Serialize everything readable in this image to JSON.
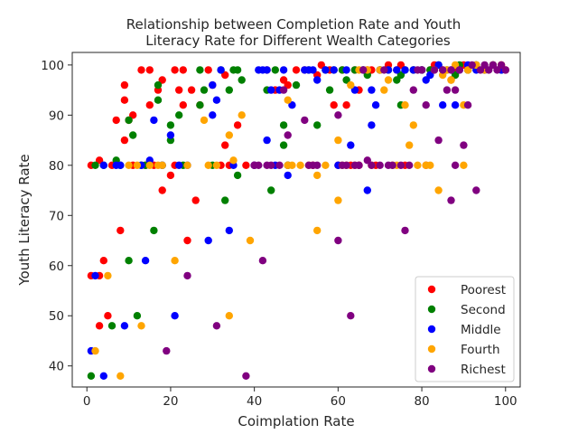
{
  "chart_data": {
    "type": "scatter",
    "title_line1": "Relationship between Completion Rate and Youth",
    "title_line2": "Literacy Rate for Different Wealth Categories",
    "xlabel": "Coimplation Rate",
    "ylabel": "Youth Literacy Rate",
    "xlim": [
      -3.5,
      103.5
    ],
    "ylim": [
      35.8,
      102.5
    ],
    "xticks": [
      0,
      20,
      40,
      60,
      80,
      100
    ],
    "yticks": [
      40,
      50,
      60,
      70,
      80,
      90,
      100
    ],
    "grid": false,
    "legend_position": "lower-right",
    "series": [
      {
        "name": "Poorest",
        "color": "#ff0000",
        "points": [
          [
            1,
            58
          ],
          [
            1,
            80
          ],
          [
            3,
            58
          ],
          [
            3,
            81
          ],
          [
            3,
            48
          ],
          [
            4,
            61
          ],
          [
            5,
            50
          ],
          [
            6,
            80
          ],
          [
            7,
            89
          ],
          [
            8,
            67
          ],
          [
            9,
            85
          ],
          [
            9,
            93
          ],
          [
            9,
            96
          ],
          [
            10,
            89
          ],
          [
            11,
            80
          ],
          [
            11,
            90
          ],
          [
            13,
            99
          ],
          [
            14,
            80
          ],
          [
            15,
            99
          ],
          [
            15,
            92
          ],
          [
            16,
            80
          ],
          [
            17,
            95
          ],
          [
            18,
            97
          ],
          [
            18,
            75
          ],
          [
            20,
            78
          ],
          [
            21,
            80
          ],
          [
            21,
            99
          ],
          [
            22,
            95
          ],
          [
            23,
            92
          ],
          [
            23,
            99
          ],
          [
            24,
            65
          ],
          [
            25,
            95
          ],
          [
            26,
            73
          ],
          [
            27,
            92
          ],
          [
            29,
            99
          ],
          [
            30,
            96
          ],
          [
            32,
            80
          ],
          [
            33,
            98
          ],
          [
            33,
            84
          ],
          [
            34,
            80
          ],
          [
            36,
            88
          ],
          [
            38,
            80
          ],
          [
            40,
            80
          ],
          [
            43,
            99
          ],
          [
            45,
            95
          ],
          [
            47,
            97
          ],
          [
            48,
            96
          ],
          [
            48,
            80
          ],
          [
            50,
            99
          ],
          [
            52,
            99
          ],
          [
            54,
            80
          ],
          [
            55,
            98
          ],
          [
            56,
            100
          ],
          [
            58,
            99
          ],
          [
            59,
            92
          ],
          [
            60,
            80
          ],
          [
            61,
            99
          ],
          [
            62,
            92
          ],
          [
            63,
            80
          ],
          [
            64,
            99
          ],
          [
            65,
            95
          ],
          [
            65,
            80
          ],
          [
            67,
            99
          ],
          [
            68,
            99
          ],
          [
            69,
            80
          ],
          [
            70,
            99
          ],
          [
            72,
            100
          ],
          [
            74,
            99
          ],
          [
            75,
            100
          ],
          [
            76,
            80
          ],
          [
            78,
            99
          ],
          [
            80,
            99
          ],
          [
            81,
            80
          ],
          [
            82,
            99
          ],
          [
            83,
            100
          ],
          [
            85,
            99
          ],
          [
            87,
            97
          ],
          [
            88,
            99
          ],
          [
            90,
            100
          ],
          [
            91,
            99
          ],
          [
            93,
            100
          ],
          [
            95,
            99
          ],
          [
            97,
            100
          ],
          [
            99,
            100
          ],
          [
            100,
            99
          ]
        ]
      },
      {
        "name": "Second",
        "color": "#008000",
        "points": [
          [
            1,
            38
          ],
          [
            2,
            80
          ],
          [
            4,
            80
          ],
          [
            6,
            48
          ],
          [
            7,
            81
          ],
          [
            8,
            80
          ],
          [
            10,
            61
          ],
          [
            10,
            89
          ],
          [
            11,
            86
          ],
          [
            12,
            50
          ],
          [
            13,
            80
          ],
          [
            14,
            80
          ],
          [
            16,
            67
          ],
          [
            17,
            96
          ],
          [
            17,
            93
          ],
          [
            18,
            80
          ],
          [
            20,
            85
          ],
          [
            20,
            88
          ],
          [
            22,
            90
          ],
          [
            23,
            80
          ],
          [
            27,
            92
          ],
          [
            27,
            99
          ],
          [
            28,
            95
          ],
          [
            30,
            80
          ],
          [
            32,
            99
          ],
          [
            33,
            73
          ],
          [
            34,
            95
          ],
          [
            35,
            99
          ],
          [
            36,
            99
          ],
          [
            36,
            78
          ],
          [
            37,
            97
          ],
          [
            43,
            95
          ],
          [
            44,
            75
          ],
          [
            45,
            99
          ],
          [
            47,
            88
          ],
          [
            47,
            84
          ],
          [
            48,
            80
          ],
          [
            50,
            96
          ],
          [
            53,
            99
          ],
          [
            55,
            88
          ],
          [
            57,
            99
          ],
          [
            58,
            95
          ],
          [
            59,
            99
          ],
          [
            61,
            99
          ],
          [
            62,
            97
          ],
          [
            64,
            99
          ],
          [
            66,
            99
          ],
          [
            67,
            98
          ],
          [
            70,
            99
          ],
          [
            72,
            99
          ],
          [
            74,
            97
          ],
          [
            75,
            98
          ],
          [
            75,
            92
          ],
          [
            76,
            99
          ],
          [
            78,
            99
          ],
          [
            80,
            99
          ],
          [
            82,
            99
          ],
          [
            84,
            100
          ],
          [
            86,
            99
          ],
          [
            88,
            98
          ],
          [
            89,
            100
          ],
          [
            91,
            99
          ],
          [
            93,
            100
          ],
          [
            95,
            99
          ],
          [
            97,
            100
          ],
          [
            99,
            99
          ]
        ]
      },
      {
        "name": "Middle",
        "color": "#0000ff",
        "points": [
          [
            1,
            43
          ],
          [
            2,
            58
          ],
          [
            4,
            38
          ],
          [
            4,
            80
          ],
          [
            7,
            80
          ],
          [
            8,
            80
          ],
          [
            9,
            48
          ],
          [
            13,
            80
          ],
          [
            14,
            61
          ],
          [
            15,
            81
          ],
          [
            16,
            89
          ],
          [
            18,
            80
          ],
          [
            20,
            86
          ],
          [
            21,
            50
          ],
          [
            22,
            80
          ],
          [
            24,
            80
          ],
          [
            29,
            65
          ],
          [
            30,
            90
          ],
          [
            30,
            96
          ],
          [
            31,
            93
          ],
          [
            32,
            99
          ],
          [
            34,
            67
          ],
          [
            35,
            80
          ],
          [
            40,
            80
          ],
          [
            41,
            99
          ],
          [
            42,
            99
          ],
          [
            43,
            85
          ],
          [
            43,
            99
          ],
          [
            44,
            95
          ],
          [
            45,
            80
          ],
          [
            46,
            95
          ],
          [
            47,
            99
          ],
          [
            48,
            78
          ],
          [
            49,
            92
          ],
          [
            52,
            99
          ],
          [
            53,
            99
          ],
          [
            54,
            99
          ],
          [
            55,
            97
          ],
          [
            57,
            99
          ],
          [
            59,
            99
          ],
          [
            60,
            80
          ],
          [
            62,
            99
          ],
          [
            63,
            84
          ],
          [
            64,
            95
          ],
          [
            66,
            99
          ],
          [
            67,
            75
          ],
          [
            68,
            95
          ],
          [
            68,
            88
          ],
          [
            69,
            92
          ],
          [
            70,
            99
          ],
          [
            72,
            99
          ],
          [
            74,
            99
          ],
          [
            76,
            99
          ],
          [
            78,
            99
          ],
          [
            80,
            99
          ],
          [
            81,
            97
          ],
          [
            82,
            98
          ],
          [
            84,
            100
          ],
          [
            85,
            92
          ],
          [
            87,
            99
          ],
          [
            88,
            92
          ],
          [
            89,
            99
          ],
          [
            91,
            100
          ],
          [
            93,
            99
          ],
          [
            95,
            99
          ],
          [
            97,
            100
          ],
          [
            99,
            99
          ]
        ]
      },
      {
        "name": "Fourth",
        "color": "#ffa500",
        "points": [
          [
            2,
            43
          ],
          [
            5,
            58
          ],
          [
            8,
            38
          ],
          [
            10,
            80
          ],
          [
            12,
            80
          ],
          [
            13,
            48
          ],
          [
            15,
            80
          ],
          [
            17,
            80
          ],
          [
            18,
            80
          ],
          [
            21,
            61
          ],
          [
            24,
            80
          ],
          [
            28,
            89
          ],
          [
            29,
            80
          ],
          [
            31,
            80
          ],
          [
            34,
            50
          ],
          [
            34,
            86
          ],
          [
            35,
            81
          ],
          [
            37,
            90
          ],
          [
            39,
            65
          ],
          [
            48,
            93
          ],
          [
            48,
            80
          ],
          [
            49,
            80
          ],
          [
            51,
            80
          ],
          [
            53,
            80
          ],
          [
            55,
            67
          ],
          [
            55,
            78
          ],
          [
            57,
            80
          ],
          [
            60,
            73
          ],
          [
            60,
            85
          ],
          [
            61,
            80
          ],
          [
            62,
            80
          ],
          [
            63,
            96
          ],
          [
            64,
            80
          ],
          [
            65,
            99
          ],
          [
            67,
            99
          ],
          [
            68,
            80
          ],
          [
            70,
            99
          ],
          [
            71,
            95
          ],
          [
            72,
            97
          ],
          [
            73,
            80
          ],
          [
            74,
            80
          ],
          [
            76,
            92
          ],
          [
            77,
            84
          ],
          [
            78,
            88
          ],
          [
            79,
            80
          ],
          [
            81,
            80
          ],
          [
            82,
            80
          ],
          [
            83,
            99
          ],
          [
            84,
            75
          ],
          [
            85,
            98
          ],
          [
            86,
            99
          ],
          [
            87,
            97
          ],
          [
            88,
            100
          ],
          [
            90,
            92
          ],
          [
            90,
            80
          ],
          [
            91,
            99
          ],
          [
            93,
            100
          ],
          [
            95,
            99
          ],
          [
            97,
            100
          ],
          [
            99,
            100
          ]
        ]
      },
      {
        "name": "Richest",
        "color": "#800080",
        "points": [
          [
            19,
            43
          ],
          [
            24,
            58
          ],
          [
            31,
            48
          ],
          [
            38,
            38
          ],
          [
            40,
            80
          ],
          [
            41,
            80
          ],
          [
            42,
            61
          ],
          [
            43,
            80
          ],
          [
            44,
            80
          ],
          [
            46,
            80
          ],
          [
            47,
            95
          ],
          [
            48,
            86
          ],
          [
            52,
            89
          ],
          [
            53,
            80
          ],
          [
            54,
            80
          ],
          [
            55,
            80
          ],
          [
            60,
            65
          ],
          [
            60,
            90
          ],
          [
            61,
            80
          ],
          [
            62,
            80
          ],
          [
            63,
            50
          ],
          [
            64,
            80
          ],
          [
            65,
            80
          ],
          [
            66,
            99
          ],
          [
            67,
            81
          ],
          [
            68,
            80
          ],
          [
            70,
            80
          ],
          [
            71,
            99
          ],
          [
            72,
            80
          ],
          [
            73,
            80
          ],
          [
            75,
            80
          ],
          [
            76,
            67
          ],
          [
            77,
            80
          ],
          [
            78,
            95
          ],
          [
            79,
            99
          ],
          [
            80,
            99
          ],
          [
            81,
            92
          ],
          [
            83,
            99
          ],
          [
            84,
            85
          ],
          [
            85,
            99
          ],
          [
            86,
            95
          ],
          [
            87,
            99
          ],
          [
            87,
            73
          ],
          [
            88,
            80
          ],
          [
            88,
            95
          ],
          [
            89,
            99
          ],
          [
            90,
            84
          ],
          [
            91,
            92
          ],
          [
            92,
            100
          ],
          [
            93,
            75
          ],
          [
            94,
            99
          ],
          [
            95,
            100
          ],
          [
            96,
            99
          ],
          [
            97,
            100
          ],
          [
            98,
            99
          ],
          [
            99,
            100
          ],
          [
            100,
            99
          ]
        ]
      }
    ]
  }
}
